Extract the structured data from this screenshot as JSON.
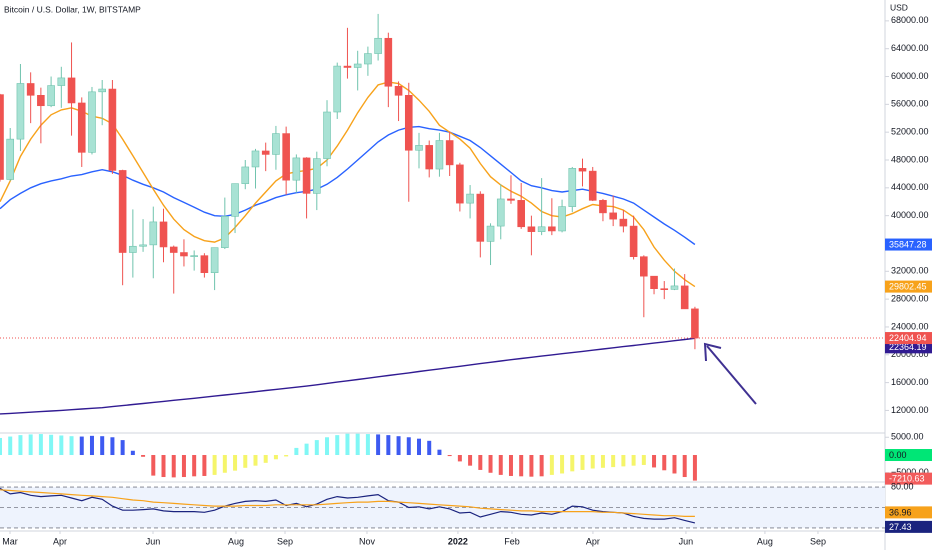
{
  "chart_data": [
    {
      "type": "candlestick",
      "title": "Bitcoin / U.S. Dollar, 1W, BITSTAMP",
      "currency": "USD",
      "up_color": "#a8e2d4",
      "up_border": "#6fc3ad",
      "down_color": "#ef5350",
      "last_line_color": "#ef5350",
      "open": [
        57400,
        45200,
        51000,
        59000,
        57300,
        55800,
        58700,
        59800,
        56200,
        49100,
        57800,
        58200,
        46500,
        34700,
        35600,
        35800,
        39100,
        35500,
        34700,
        34200,
        34250,
        31800,
        35400,
        39900,
        44600,
        47000,
        49300,
        48800,
        51800,
        45100,
        48300,
        43200,
        48200,
        54900,
        61500,
        61300,
        61800,
        63300,
        65500,
        58600,
        57300,
        49400,
        50100,
        46700,
        50800,
        47300,
        41800,
        43100,
        36300,
        38500,
        42400,
        42200,
        38400,
        37700,
        38400,
        37800,
        41300,
        46800,
        46400,
        42200,
        40400,
        39500,
        38500,
        34100,
        31300,
        29500,
        29400,
        29900,
        26600
      ],
      "high": [
        57500,
        52600,
        61800,
        60600,
        58400,
        60000,
        61400,
        64900,
        57000,
        58500,
        59500,
        59500,
        46600,
        40900,
        39500,
        41300,
        41000,
        35700,
        36600,
        35000,
        34600,
        35400,
        42600,
        44600,
        48000,
        49600,
        50500,
        52900,
        52800,
        48800,
        48400,
        49200,
        56600,
        62000,
        67000,
        63700,
        64300,
        69000,
        66300,
        59300,
        59100,
        51900,
        50800,
        51900,
        52100,
        47600,
        44400,
        43500,
        38900,
        44500,
        45800,
        44700,
        40000,
        45400,
        42500,
        42300,
        47000,
        48200,
        47000,
        42400,
        42900,
        40800,
        40000,
        34300,
        31300,
        30600,
        32400,
        31600,
        26900
      ],
      "low": [
        44900,
        45000,
        49300,
        53300,
        50400,
        55600,
        55500,
        51500,
        47000,
        48800,
        53000,
        46000,
        30000,
        31100,
        34800,
        31000,
        33300,
        28800,
        32700,
        32100,
        31100,
        29300,
        35200,
        37500,
        43800,
        43900,
        46400,
        46600,
        43000,
        43300,
        39600,
        40800,
        47100,
        53900,
        59700,
        58000,
        60100,
        62300,
        55600,
        53600,
        42000,
        46800,
        45500,
        45600,
        45700,
        40600,
        39600,
        34000,
        32900,
        36600,
        41700,
        38100,
        34300,
        37200,
        37200,
        37600,
        40500,
        44200,
        42100,
        39200,
        38500,
        37600,
        33700,
        25400,
        28700,
        28000,
        29300,
        26600,
        20800
      ],
      "close": [
        45200,
        51000,
        59000,
        57300,
        55800,
        58700,
        59800,
        56200,
        49100,
        57800,
        58200,
        46500,
        34700,
        35600,
        35800,
        39100,
        35500,
        34700,
        34200,
        34250,
        31800,
        35400,
        39900,
        44600,
        47000,
        49300,
        48800,
        51800,
        45100,
        48300,
        43200,
        48200,
        54900,
        61500,
        61300,
        61800,
        63300,
        65500,
        58600,
        57300,
        49400,
        50100,
        46700,
        50800,
        47300,
        41800,
        43100,
        36300,
        38500,
        42400,
        42200,
        38400,
        37700,
        38400,
        37800,
        41300,
        46800,
        46400,
        42200,
        40400,
        39500,
        38500,
        34100,
        31300,
        29500,
        29400,
        29900,
        26600,
        22404.94
      ],
      "series": [
        {
          "color": "#2962ff",
          "values": [
            41000,
            42300,
            43200,
            44000,
            44600,
            45000,
            45300,
            45700,
            45900,
            46300,
            46600,
            46300,
            45800,
            45100,
            44500,
            44000,
            43400,
            42600,
            41900,
            41200,
            40500,
            40000,
            39900,
            40200,
            40800,
            41500,
            42000,
            42600,
            43000,
            43300,
            43500,
            43800,
            44500,
            45500,
            46700,
            48000,
            49300,
            50600,
            51600,
            52300,
            52700,
            52800,
            52500,
            52300,
            52000,
            51400,
            50800,
            49800,
            48600,
            47400,
            46200,
            45000,
            44300,
            44000,
            43600,
            43400,
            43600,
            43800,
            43500,
            43200,
            42800,
            42400,
            41800,
            40800,
            39800,
            38800,
            37900,
            36900,
            35847.28
          ]
        },
        {
          "color": "#f7a21b",
          "values": [
            42000,
            45000,
            48500,
            51000,
            53000,
            54500,
            55200,
            55500,
            55000,
            54300,
            54000,
            53200,
            51000,
            48600,
            46200,
            43800,
            41500,
            39500,
            38000,
            37000,
            36400,
            36200,
            36800,
            38300,
            40000,
            41800,
            43400,
            45000,
            46000,
            46300,
            46500,
            46800,
            48000,
            50000,
            52300,
            54800,
            57000,
            58800,
            59200,
            59000,
            58000,
            56600,
            55000,
            53000,
            52000,
            51000,
            49700,
            47500,
            45600,
            44400,
            43500,
            42800,
            41800,
            40600,
            40000,
            39800,
            40300,
            41000,
            41600,
            41400,
            41300,
            40800,
            39800,
            38000,
            35500,
            33600,
            32000,
            30800,
            29802.45
          ]
        },
        {
          "color": "#311b92",
          "values": [
            11500,
            11580,
            11660,
            11740,
            11830,
            11920,
            12010,
            12110,
            12200,
            12300,
            12400,
            12550,
            12700,
            12850,
            13000,
            13150,
            13300,
            13450,
            13600,
            13750,
            13900,
            14060,
            14220,
            14380,
            14540,
            14700,
            14860,
            15020,
            15180,
            15340,
            15500,
            15690,
            15880,
            16070,
            16260,
            16450,
            16640,
            16830,
            17020,
            17210,
            17400,
            17590,
            17780,
            17970,
            18160,
            18350,
            18540,
            18730,
            18920,
            19110,
            19300,
            19470,
            19640,
            19810,
            19980,
            20150,
            20320,
            20490,
            20660,
            20830,
            21000,
            21170,
            21340,
            21510,
            21680,
            21850,
            22020,
            22190,
            22364.19
          ]
        }
      ],
      "xlim": [
        0,
        86.6
      ],
      "xticks": [
        {
          "value": 0.98,
          "label": "Mar"
        },
        {
          "value": 5.87,
          "label": "Apr"
        },
        {
          "value": 14.97,
          "label": "Jun"
        },
        {
          "value": 23.09,
          "label": "Aug"
        },
        {
          "value": 27.89,
          "label": "Sep"
        },
        {
          "value": 35.91,
          "label": "Nov"
        },
        {
          "value": 44.81,
          "label": "2022"
        },
        {
          "value": 50.1,
          "label": "Feb"
        },
        {
          "value": 58.02,
          "label": "Apr"
        },
        {
          "value": 67.12,
          "label": "Jun"
        },
        {
          "value": 74.85,
          "label": "Aug"
        },
        {
          "value": 80.04,
          "label": "Sep"
        }
      ],
      "ylim": [
        8900,
        71000
      ],
      "yticks": [
        {
          "value": 68000,
          "label": "68000.00"
        },
        {
          "value": 64000,
          "label": "64000.00"
        },
        {
          "value": 60000,
          "label": "60000.00"
        },
        {
          "value": 56000,
          "label": "56000.00"
        },
        {
          "value": 52000,
          "label": "52000.00"
        },
        {
          "value": 48000,
          "label": "48000.00"
        },
        {
          "value": 44000,
          "label": "44000.00"
        },
        {
          "value": 40000,
          "label": "40000.00"
        },
        {
          "value": 36000,
          "label": "36000.00"
        },
        {
          "value": 32000,
          "label": "32000.00"
        },
        {
          "value": 28000,
          "label": "28000.00"
        },
        {
          "value": 24000,
          "label": "24000.00"
        },
        {
          "value": 20000,
          "label": "20000.00"
        },
        {
          "value": 16000,
          "label": "16000.00"
        },
        {
          "value": 12000,
          "label": "12000.00"
        }
      ]
    },
    {
      "type": "bar",
      "values": [
        4800,
        5200,
        5600,
        5800,
        5900,
        5700,
        5500,
        5300,
        5200,
        5400,
        5300,
        5000,
        4200,
        1200,
        -500,
        -5800,
        -6200,
        -6300,
        -6200,
        -6000,
        -5900,
        -5600,
        -5000,
        -4400,
        -3600,
        -3000,
        -2200,
        -1200,
        -400,
        2000,
        3200,
        4200,
        5000,
        5600,
        6000,
        6000,
        5900,
        5800,
        5600,
        5300,
        5000,
        4600,
        4000,
        1500,
        -300,
        -1800,
        -3000,
        -4200,
        -5000,
        -5600,
        -5900,
        -6000,
        -6100,
        -6000,
        -5600,
        -5200,
        -4600,
        -4200,
        -3800,
        -3600,
        -3400,
        -3200,
        -3000,
        -2800,
        -3500,
        -4300,
        -5200,
        -6200,
        -7210.63
      ],
      "colors": [
        "#80f7f5",
        "#80f7f5",
        "#80f7f5",
        "#80f7f5",
        "#80f7f5",
        "#80f7f5",
        "#80f7f5",
        "#80f7f5",
        "#3d5af1",
        "#3d5af1",
        "#3d5af1",
        "#3d5af1",
        "#3d5af1",
        "#3d5af1",
        "#f25b5b",
        "#f25b5b",
        "#f25b5b",
        "#f25b5b",
        "#f25b5b",
        "#f25b5b",
        "#f25b5b",
        "#f5f56a",
        "#f5f56a",
        "#f5f56a",
        "#f5f56a",
        "#f5f56a",
        "#f5f56a",
        "#f5f56a",
        "#f5f56a",
        "#80f7f5",
        "#80f7f5",
        "#80f7f5",
        "#80f7f5",
        "#80f7f5",
        "#80f7f5",
        "#80f7f5",
        "#80f7f5",
        "#3d5af1",
        "#3d5af1",
        "#3d5af1",
        "#3d5af1",
        "#3d5af1",
        "#3d5af1",
        "#3d5af1",
        "#f25b5b",
        "#f25b5b",
        "#f25b5b",
        "#f25b5b",
        "#f25b5b",
        "#f25b5b",
        "#f25b5b",
        "#f25b5b",
        "#f25b5b",
        "#f25b5b",
        "#f5f56a",
        "#f5f56a",
        "#f5f56a",
        "#f5f56a",
        "#f5f56a",
        "#f5f56a",
        "#f5f56a",
        "#f5f56a",
        "#f5f56a",
        "#f5f56a",
        "#f25b5b",
        "#f25b5b",
        "#f25b5b",
        "#f25b5b",
        "#f25b5b"
      ],
      "zero_color": "#00e676",
      "ylim": [
        -7600,
        6200
      ],
      "yticks": [
        {
          "value": 5000,
          "label": "5000.00"
        },
        {
          "value": 0,
          "label": "0.00"
        },
        {
          "value": -5000,
          "label": "−5000.00"
        }
      ]
    },
    {
      "type": "line",
      "band": [
        20,
        80
      ],
      "band_color": "#eef3fd",
      "series": [
        {
          "color": "#1a237e",
          "values": [
            78,
            70,
            72,
            68,
            66,
            67,
            68,
            64,
            60,
            65,
            62,
            52,
            46,
            46,
            47,
            48,
            45,
            44,
            44,
            44,
            43,
            46,
            52,
            56,
            59,
            60,
            59,
            61,
            53,
            56,
            51,
            55,
            62,
            66,
            64,
            65,
            67,
            69,
            60,
            58,
            50,
            51,
            48,
            51,
            48,
            42,
            43,
            36,
            40,
            44,
            43,
            40,
            39,
            42,
            40,
            44,
            52,
            51,
            46,
            44,
            43,
            42,
            37,
            34,
            33,
            33,
            35,
            31,
            27.43
          ]
        },
        {
          "color": "#f7a21b",
          "values": [
            76,
            75,
            74,
            73,
            72,
            71,
            70,
            69,
            68,
            67,
            66,
            65,
            63,
            61,
            60,
            58,
            57,
            56,
            55,
            54,
            53,
            52,
            52,
            52,
            53,
            53,
            53,
            54,
            54,
            54,
            54,
            54,
            55,
            56,
            57,
            58,
            58,
            59,
            59,
            58,
            57,
            56,
            55,
            54,
            53,
            52,
            51,
            49,
            48,
            47,
            46,
            45,
            45,
            44,
            44,
            44,
            44,
            44,
            44,
            43,
            43,
            42,
            41,
            40,
            39,
            38,
            38,
            37,
            36.96
          ]
        }
      ],
      "ylim": [
        15.5,
        86
      ],
      "yticks": [
        {
          "value": 80,
          "label": "80.00"
        },
        {
          "value": 50,
          "label": ""
        },
        {
          "value": 20,
          "label": ""
        }
      ]
    }
  ]
}
